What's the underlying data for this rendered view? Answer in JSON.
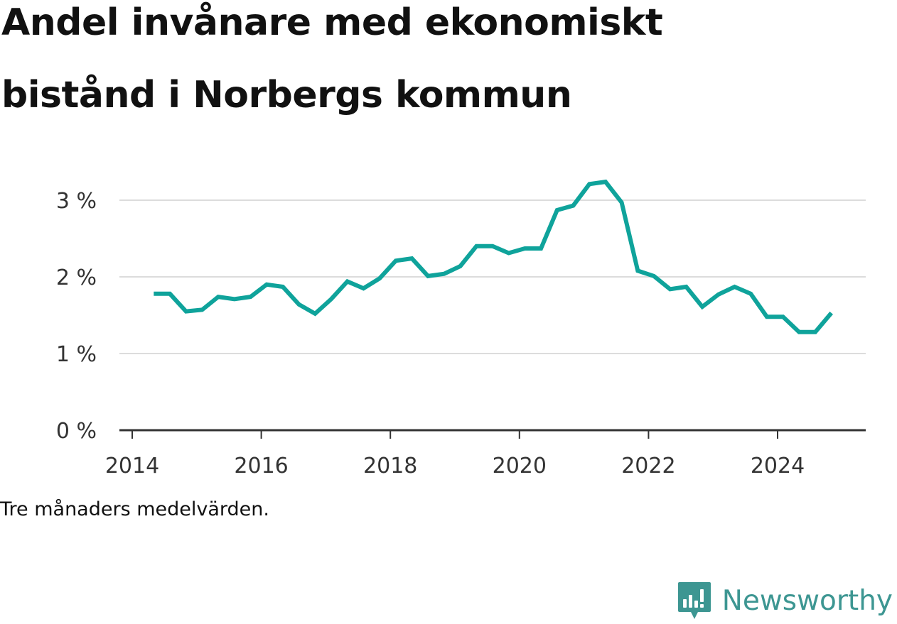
{
  "title": {
    "line1": "Andel invånare med ekonomiskt",
    "line2": "bistånd i Norbergs kommun"
  },
  "note": "Tre månaders medelvärden.",
  "brand": {
    "name": "Newsworthy",
    "logo_icon": "newsworthy-bar-chart-speech-bubble-icon",
    "color": "#3d9692"
  },
  "chart_data": {
    "type": "line",
    "title": "Andel invånare med ekonomiskt bistånd i Norbergs kommun",
    "xlabel": "",
    "ylabel": "",
    "x_ticks": [
      "2014",
      "2016",
      "2018",
      "2020",
      "2022",
      "2024"
    ],
    "y_ticks": [
      "0 %",
      "1 %",
      "2 %",
      "3 %"
    ],
    "xlim": [
      2014,
      2025.4
    ],
    "ylim": [
      0,
      3.3
    ],
    "grid": true,
    "line_color": "#0fa39b",
    "series": [
      {
        "name": "",
        "x": [
          "2014-05",
          "2014-08",
          "2014-11",
          "2015-02",
          "2015-05",
          "2015-08",
          "2015-11",
          "2016-02",
          "2016-05",
          "2016-08",
          "2016-11",
          "2017-02",
          "2017-05",
          "2017-08",
          "2017-11",
          "2018-02",
          "2018-05",
          "2018-08",
          "2018-11",
          "2019-02",
          "2019-05",
          "2019-08",
          "2019-11",
          "2020-02",
          "2020-05",
          "2020-08",
          "2020-11",
          "2021-02",
          "2021-05",
          "2021-08",
          "2021-11",
          "2022-02",
          "2022-05",
          "2022-08",
          "2022-11",
          "2023-02",
          "2023-05",
          "2023-08",
          "2023-11",
          "2024-02",
          "2024-05",
          "2024-08",
          "2024-11"
        ],
        "values": [
          1.78,
          1.78,
          1.55,
          1.57,
          1.74,
          1.71,
          1.74,
          1.9,
          1.87,
          1.64,
          1.52,
          1.71,
          1.94,
          1.85,
          1.98,
          2.21,
          2.24,
          2.01,
          2.04,
          2.14,
          2.4,
          2.4,
          2.31,
          2.37,
          2.37,
          2.87,
          2.93,
          3.21,
          3.24,
          2.97,
          2.08,
          2.01,
          1.84,
          1.87,
          1.61,
          1.77,
          1.87,
          1.78,
          1.48,
          1.48,
          1.28,
          1.28,
          1.53
        ]
      }
    ]
  }
}
